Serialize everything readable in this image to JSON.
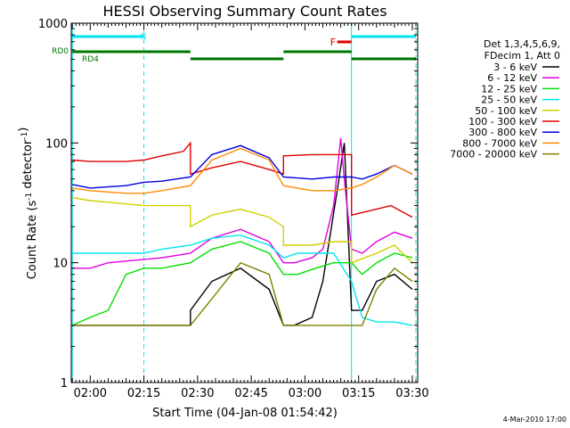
{
  "chart_data": {
    "type": "line",
    "title": "HESSI Observing Summary Count Rates",
    "xlabel": "Start Time (04-Jan-08 01:54:42)",
    "ylabel": "Count Rate (s⁻¹ detector⁻¹)",
    "yscale": "log",
    "ylim": [
      1,
      1000
    ],
    "yticks": [
      {
        "value": 1,
        "label": "1"
      },
      {
        "value": 10,
        "label": "10"
      },
      {
        "value": 100,
        "label": "100"
      },
      {
        "value": 1000,
        "label": "1000"
      }
    ],
    "xlim": [
      "01:54:42",
      "03:31:30"
    ],
    "xticks": [
      "02:00",
      "02:15",
      "02:30",
      "02:45",
      "03:00",
      "03:15",
      "03:30"
    ],
    "footer": "4-Mar-2010 17:00",
    "legend": {
      "placement": "right",
      "header": [
        "Det 1,3,4,5,6,9,",
        "FDecim 1, Att 0"
      ]
    },
    "flags": [
      {
        "label": "N",
        "color": "#00e5ee",
        "segments": [
          [
            "01:55",
            "02:15"
          ],
          [
            "03:13",
            "03:31"
          ]
        ]
      },
      {
        "label": "F",
        "color": "#e00000",
        "segments": [
          [
            "03:09",
            "03:13"
          ]
        ]
      },
      {
        "label": "RD0",
        "color": "#007700",
        "segments": [
          [
            "01:55",
            "02:28"
          ],
          [
            "02:54",
            "03:13"
          ]
        ]
      },
      {
        "label": "RD4",
        "color": "#007700",
        "segments": [
          [
            "02:28",
            "02:54"
          ],
          [
            "03:13",
            "03:31"
          ]
        ]
      }
    ],
    "vlines": [
      {
        "time": "01:55",
        "color": "#00e5ee",
        "style": "solid"
      },
      {
        "time": "02:15",
        "color": "#00e5ee",
        "style": "dashed"
      },
      {
        "time": "03:13",
        "color": "#00e5ee",
        "style": "solid"
      },
      {
        "time": "03:31",
        "color": "#00e5ee",
        "style": "dashed"
      }
    ],
    "series": [
      {
        "name": "3 - 6 keV",
        "color": "#000000",
        "x": [
          "01:55",
          "02:28",
          "02:28",
          "02:34",
          "02:42",
          "02:50",
          "02:54",
          "02:57",
          "03:02",
          "03:05",
          "03:09",
          "03:11",
          "03:13",
          "03:16",
          "03:20",
          "03:25",
          "03:30"
        ],
        "y": [
          3,
          3,
          4,
          7,
          9,
          6,
          3,
          3,
          3.5,
          7,
          40,
          100,
          4,
          4,
          7,
          8,
          6
        ]
      },
      {
        "name": "6 - 12 keV",
        "color": "#e000e0",
        "x": [
          "01:55",
          "02:00",
          "02:05",
          "02:20",
          "02:28",
          "02:34",
          "02:42",
          "02:50",
          "02:54",
          "02:57",
          "03:02",
          "03:05",
          "03:08",
          "03:10",
          "03:11",
          "03:13",
          "03:16",
          "03:20",
          "03:25",
          "03:30"
        ],
        "y": [
          9,
          9,
          10,
          11,
          12,
          16,
          19,
          15,
          10,
          10,
          11,
          13,
          30,
          110,
          50,
          13,
          12,
          15,
          18,
          16
        ]
      },
      {
        "name": "12 - 25 keV",
        "color": "#00e000",
        "x": [
          "01:55",
          "02:00",
          "02:05",
          "02:10",
          "02:15",
          "02:20",
          "02:28",
          "02:34",
          "02:42",
          "02:50",
          "02:54",
          "02:58",
          "03:03",
          "03:08",
          "03:13",
          "03:16",
          "03:20",
          "03:25",
          "03:30"
        ],
        "y": [
          3,
          3.5,
          4,
          8,
          9,
          9,
          10,
          13,
          15,
          12,
          8,
          8,
          9,
          10,
          10,
          8,
          10,
          12,
          11
        ]
      },
      {
        "name": "25 - 50 keV",
        "color": "#00e5ee",
        "x": [
          "01:55",
          "02:00",
          "02:05",
          "02:10",
          "02:15",
          "02:20",
          "02:28",
          "02:34",
          "02:42",
          "02:50",
          "02:54",
          "02:58",
          "03:03",
          "03:08",
          "03:13",
          "03:16",
          "03:20",
          "03:25",
          "03:30"
        ],
        "y": [
          12,
          12,
          12,
          12,
          12,
          13,
          14,
          16,
          17,
          14,
          11,
          12,
          12,
          12,
          7,
          3.5,
          3.2,
          3.2,
          3
        ]
      },
      {
        "name": "50 - 100 keV",
        "color": "#d0d000",
        "x": [
          "01:55",
          "02:00",
          "02:05",
          "02:10",
          "02:15",
          "02:20",
          "02:28",
          "02:28",
          "02:34",
          "02:42",
          "02:50",
          "02:54",
          "02:54",
          "03:02",
          "03:08",
          "03:13",
          "03:13",
          "03:20",
          "03:25",
          "03:30"
        ],
        "y": [
          35,
          33,
          32,
          31,
          30,
          30,
          30,
          20,
          25,
          28,
          24,
          20,
          14,
          14,
          15,
          15,
          10,
          12,
          14,
          10
        ]
      },
      {
        "name": "100 - 300 keV",
        "color": "#e00000",
        "x": [
          "01:55",
          "02:00",
          "02:10",
          "02:15",
          "02:20",
          "02:26",
          "02:28",
          "02:28",
          "02:34",
          "02:42",
          "02:50",
          "02:54",
          "02:54",
          "03:02",
          "03:08",
          "03:13",
          "03:13",
          "03:20",
          "03:24",
          "03:30"
        ],
        "y": [
          72,
          70,
          70,
          72,
          78,
          85,
          100,
          55,
          62,
          70,
          60,
          55,
          78,
          80,
          80,
          80,
          25,
          28,
          30,
          24
        ]
      },
      {
        "name": "300 - 800 keV",
        "color": "#0000e0",
        "x": [
          "01:55",
          "02:00",
          "02:10",
          "02:15",
          "02:20",
          "02:28",
          "02:34",
          "02:42",
          "02:50",
          "02:54",
          "03:02",
          "03:08",
          "03:13",
          "03:16",
          "03:20",
          "03:25",
          "03:30"
        ],
        "y": [
          45,
          42,
          44,
          47,
          48,
          52,
          80,
          95,
          75,
          52,
          50,
          52,
          52,
          50,
          55,
          65,
          55
        ]
      },
      {
        "name": "800 - 7000 keV",
        "color": "#ff8c00",
        "x": [
          "01:55",
          "02:00",
          "02:10",
          "02:15",
          "02:20",
          "02:28",
          "02:34",
          "02:42",
          "02:50",
          "02:54",
          "03:02",
          "03:08",
          "03:13",
          "03:16",
          "03:20",
          "03:25",
          "03:30"
        ],
        "y": [
          42,
          40,
          38,
          38,
          40,
          44,
          72,
          90,
          72,
          44,
          40,
          40,
          42,
          45,
          52,
          65,
          55
        ]
      },
      {
        "name": "7000 - 20000 keV",
        "color": "#808000",
        "x": [
          "01:55",
          "02:05",
          "02:15",
          "02:20",
          "02:28",
          "02:34",
          "02:42",
          "02:50",
          "02:54",
          "03:02",
          "03:08",
          "03:13",
          "03:16",
          "03:20",
          "03:25",
          "03:30"
        ],
        "y": [
          3,
          3,
          3,
          3,
          3,
          5,
          10,
          8,
          3,
          3,
          3,
          3,
          3,
          6,
          9,
          7
        ]
      }
    ]
  }
}
